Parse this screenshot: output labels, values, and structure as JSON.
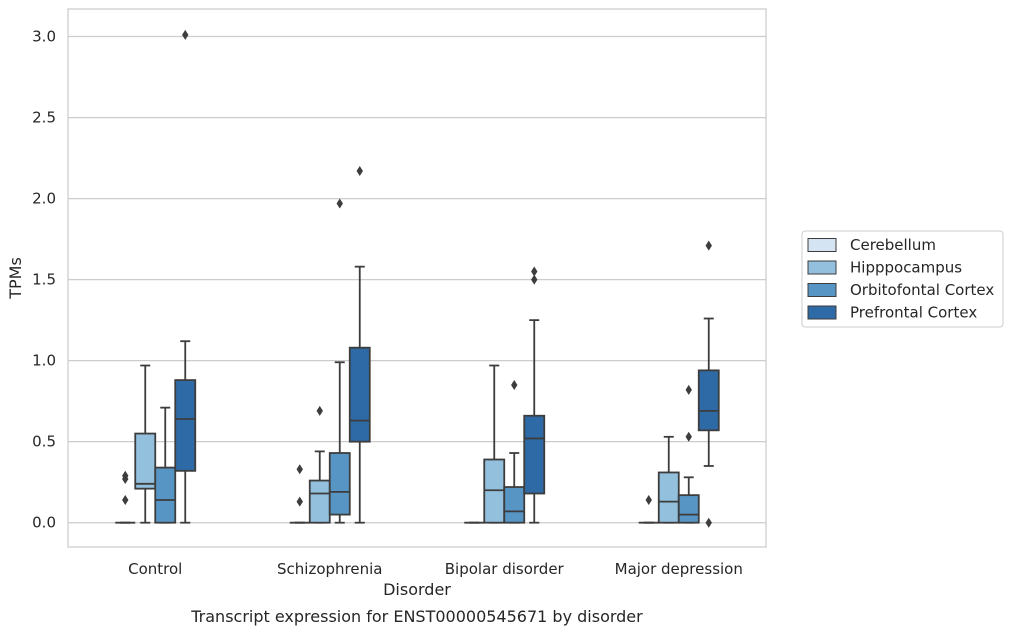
{
  "chart_data": {
    "type": "box",
    "title": "",
    "caption": "Transcript expression for ENST00000545671 by disorder",
    "xlabel": "Disorder",
    "ylabel": "TPMs",
    "ylim": [
      -0.15,
      3.17
    ],
    "yticks": [
      "0.0",
      "0.5",
      "1.0",
      "1.5",
      "2.0",
      "2.5",
      "3.0"
    ],
    "categories": [
      "Control",
      "Schizophrenia",
      "Bipolar disorder",
      "Major depression"
    ],
    "grid": "horizontal",
    "legend_position": "right",
    "series": [
      {
        "name": "Cerebellum",
        "color": "#d5e4f2",
        "boxes": [
          {
            "whislo": 0.0,
            "q1": 0.0,
            "med": 0.0,
            "q3": 0.0,
            "whishi": 0.0,
            "fliers": [
              0.29,
              0.27,
              0.14
            ]
          },
          {
            "whislo": 0.0,
            "q1": 0.0,
            "med": 0.0,
            "q3": 0.0,
            "whishi": 0.0,
            "fliers": [
              0.33,
              0.13
            ]
          },
          {
            "whislo": 0.0,
            "q1": 0.0,
            "med": 0.0,
            "q3": 0.0,
            "whishi": 0.0,
            "fliers": []
          },
          {
            "whislo": 0.0,
            "q1": 0.0,
            "med": 0.0,
            "q3": 0.0,
            "whishi": 0.0,
            "fliers": [
              0.14
            ]
          }
        ]
      },
      {
        "name": "Hipppocampus",
        "color": "#93c0dd",
        "boxes": [
          {
            "whislo": 0.0,
            "q1": 0.21,
            "med": 0.24,
            "q3": 0.55,
            "whishi": 0.97,
            "fliers": []
          },
          {
            "whislo": 0.0,
            "q1": 0.0,
            "med": 0.18,
            "q3": 0.26,
            "whishi": 0.44,
            "fliers": [
              0.69
            ]
          },
          {
            "whislo": 0.0,
            "q1": 0.0,
            "med": 0.2,
            "q3": 0.39,
            "whishi": 0.97,
            "fliers": []
          },
          {
            "whislo": 0.0,
            "q1": 0.0,
            "med": 0.13,
            "q3": 0.31,
            "whishi": 0.53,
            "fliers": []
          }
        ]
      },
      {
        "name": "Orbitofontal Cortex",
        "color": "#5795c4",
        "boxes": [
          {
            "whislo": 0.0,
            "q1": 0.0,
            "med": 0.14,
            "q3": 0.34,
            "whishi": 0.71,
            "fliers": []
          },
          {
            "whislo": 0.0,
            "q1": 0.05,
            "med": 0.19,
            "q3": 0.43,
            "whishi": 0.99,
            "fliers": [
              1.97
            ]
          },
          {
            "whislo": 0.0,
            "q1": 0.0,
            "med": 0.07,
            "q3": 0.22,
            "whishi": 0.43,
            "fliers": [
              0.85
            ]
          },
          {
            "whislo": 0.0,
            "q1": 0.0,
            "med": 0.05,
            "q3": 0.17,
            "whishi": 0.28,
            "fliers": [
              0.82,
              0.53
            ]
          }
        ]
      },
      {
        "name": "Prefrontal Cortex",
        "color": "#2e6aa5",
        "boxes": [
          {
            "whislo": 0.0,
            "q1": 0.32,
            "med": 0.64,
            "q3": 0.88,
            "whishi": 1.12,
            "fliers": [
              3.01
            ]
          },
          {
            "whislo": 0.0,
            "q1": 0.5,
            "med": 0.63,
            "q3": 1.08,
            "whishi": 1.58,
            "fliers": [
              2.17
            ]
          },
          {
            "whislo": 0.0,
            "q1": 0.18,
            "med": 0.52,
            "q3": 0.66,
            "whishi": 1.25,
            "fliers": [
              1.55,
              1.5
            ]
          },
          {
            "whislo": 0.35,
            "q1": 0.57,
            "med": 0.69,
            "q3": 0.94,
            "whishi": 1.26,
            "fliers": [
              1.71,
              0.0
            ]
          }
        ]
      }
    ]
  }
}
